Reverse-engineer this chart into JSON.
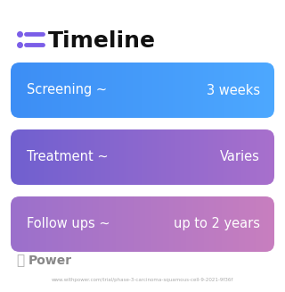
{
  "title": "Timeline",
  "title_icon_color": "#7B5EE8",
  "background_color": "#ffffff",
  "rows": [
    {
      "label": "Screening ~",
      "value": "3 weeks",
      "color_left": "#3d8ef5",
      "color_right": "#4da8ff"
    },
    {
      "label": "Treatment ~",
      "value": "Varies",
      "color_left": "#7060d0",
      "color_right": "#a870cc"
    },
    {
      "label": "Follow ups ~",
      "value": "up to 2 years",
      "color_left": "#9b70cc",
      "color_right": "#c87fbf"
    }
  ],
  "footer_logo_text": "Power",
  "footer_url": "www.withpower.com/trial/phase-3-carcinoma-squamous-cell-9-2021-9f36f",
  "footer_color": "#aaaaaa",
  "footer_bold_color": "#888888"
}
